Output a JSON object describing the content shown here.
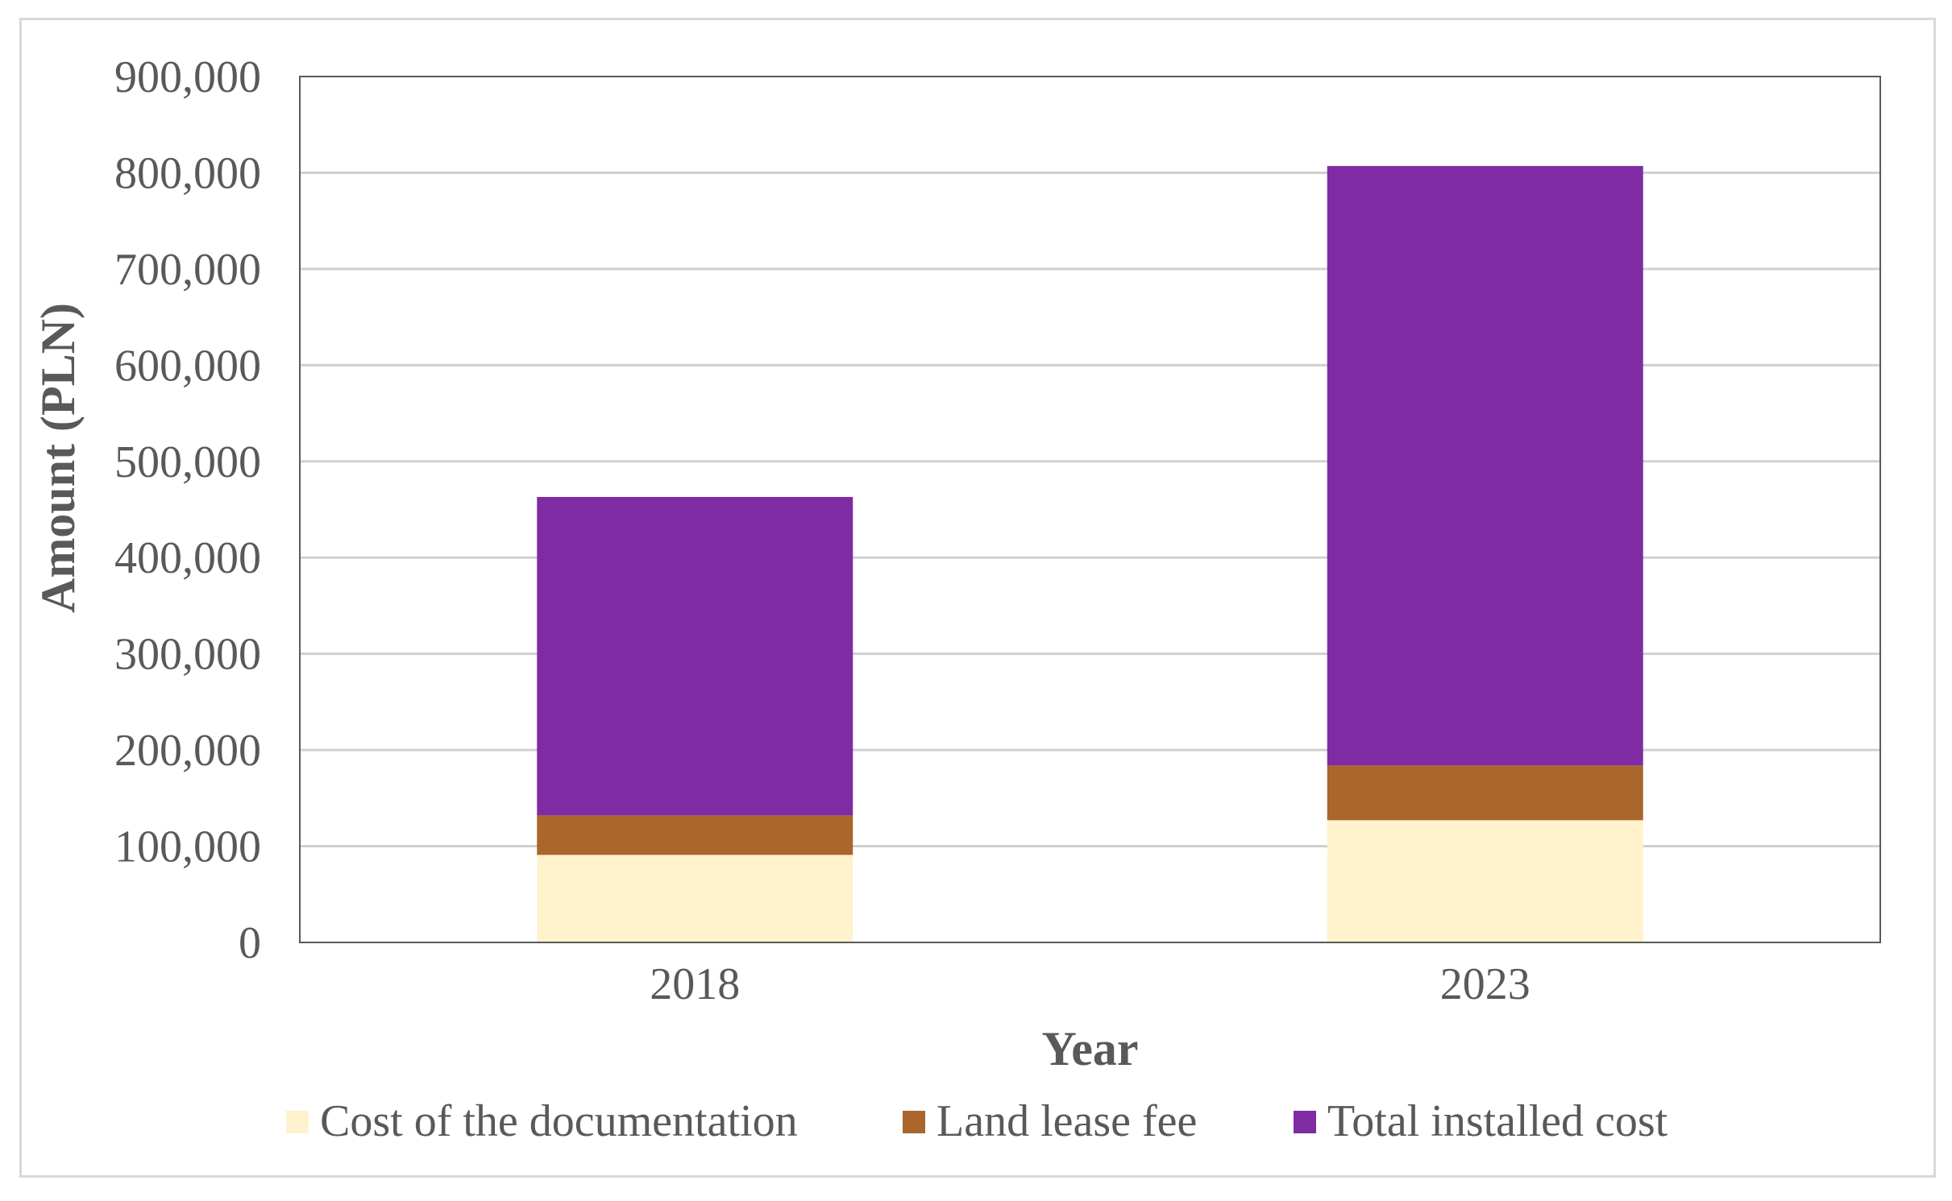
{
  "chart_data": {
    "type": "bar",
    "stacked": true,
    "categories": [
      "2018",
      "2023"
    ],
    "series": [
      {
        "name": "Cost of the documentation",
        "values": [
          91000,
          127000
        ],
        "color": "#FFF2CC"
      },
      {
        "name": "Land lease fee",
        "values": [
          41000,
          57000
        ],
        "color": "#AA662B"
      },
      {
        "name": "Total installed cost",
        "values": [
          331000,
          623000
        ],
        "color": "#7F2BA3"
      }
    ],
    "title": "",
    "xlabel": "Year",
    "ylabel": "Amount  (PLN)",
    "ylim": [
      0,
      900000
    ],
    "yticks": [
      0,
      100000,
      200000,
      300000,
      400000,
      500000,
      600000,
      700000,
      800000,
      900000
    ],
    "ytick_labels": [
      "0",
      "100,000",
      "200,000",
      "300,000",
      "400,000",
      "500,000",
      "600,000",
      "700,000",
      "800,000",
      "900,000"
    ],
    "grid": true,
    "legend_position": "bottom"
  }
}
